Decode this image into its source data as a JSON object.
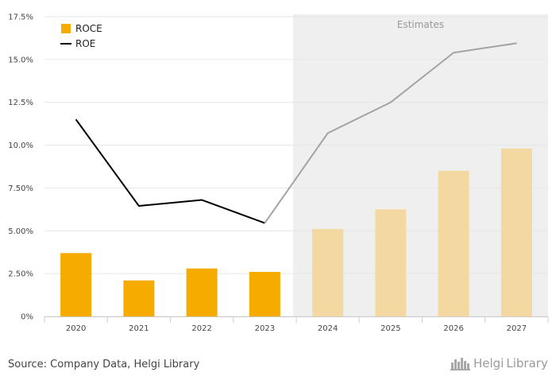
{
  "chart_data": {
    "type": "bar",
    "categories": [
      "2020",
      "2021",
      "2022",
      "2023",
      "2024",
      "2025",
      "2026",
      "2027"
    ],
    "series": [
      {
        "name": "ROCE",
        "kind": "bar",
        "values": [
          3.7,
          2.1,
          2.8,
          2.6,
          5.1,
          6.25,
          8.5,
          9.8
        ]
      },
      {
        "name": "ROE",
        "kind": "line",
        "values": [
          11.5,
          6.45,
          6.8,
          5.45,
          10.7,
          12.5,
          15.4,
          15.95
        ]
      }
    ],
    "estimates_from": "2024",
    "estimates_label": "Estimates",
    "ylim": [
      0,
      17.5
    ],
    "yticks": [
      "0%",
      "2.50%",
      "5.00%",
      "7.50%",
      "10.0%",
      "12.5%",
      "15.0%",
      "17.5%"
    ],
    "ytick_values": [
      0,
      2.5,
      5,
      7.5,
      10,
      12.5,
      15,
      17.5
    ],
    "grid": true,
    "legend_position": "top-left",
    "colors": {
      "bar_actual": "#f5ab00",
      "bar_estimate": "#f3d9a1",
      "line_actual": "#000000",
      "line_estimate": "#a3a3a3",
      "estimate_band": "#efefef",
      "grid": "#e6e6e6"
    }
  },
  "footer": {
    "source": "Source: Company Data, Helgi Library",
    "logo_text_1": "Helgi",
    "logo_text_2": "Library",
    "logo_icon": "skyline-icon"
  }
}
